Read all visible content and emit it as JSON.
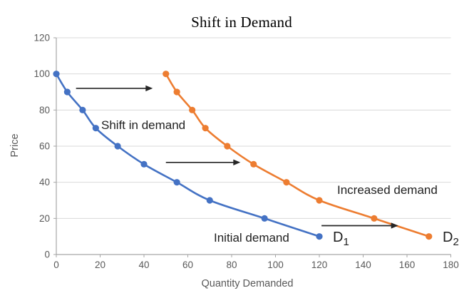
{
  "chart_data": {
    "type": "line",
    "title": "Shift in Demand",
    "xlabel": "Quantity Demanded",
    "ylabel": "Price",
    "xlim": [
      0,
      180
    ],
    "ylim": [
      0,
      120
    ],
    "x_ticks": [
      0,
      20,
      40,
      60,
      80,
      100,
      120,
      140,
      160,
      180
    ],
    "y_ticks": [
      0,
      20,
      40,
      60,
      80,
      100,
      120
    ],
    "grid": "horizontal",
    "legend": "none",
    "colors": {
      "initial_demand": "#4472C4",
      "increased_demand": "#ED7D31",
      "grid": "#d9d9d9",
      "axis": "#a6a6a6",
      "tick_text": "#595959",
      "annotation_text": "#1f1f1f",
      "arrow": "#262626"
    },
    "series": [
      {
        "name": "Initial demand",
        "curve_label": "D1",
        "color": "#4472C4",
        "points": [
          [
            0,
            100
          ],
          [
            5,
            90
          ],
          [
            12,
            80
          ],
          [
            18,
            70
          ],
          [
            28,
            60
          ],
          [
            40,
            50
          ],
          [
            55,
            40
          ],
          [
            70,
            30
          ],
          [
            95,
            20
          ],
          [
            120,
            10
          ]
        ]
      },
      {
        "name": "Increased demand",
        "curve_label": "D2",
        "color": "#ED7D31",
        "points": [
          [
            50,
            100
          ],
          [
            55,
            90
          ],
          [
            62,
            80
          ],
          [
            68,
            70
          ],
          [
            78,
            60
          ],
          [
            90,
            50
          ],
          [
            105,
            40
          ],
          [
            120,
            30
          ],
          [
            145,
            20
          ],
          [
            170,
            10
          ]
        ]
      }
    ],
    "annotations": {
      "shift_note": "Shift in demand",
      "increased": "Increased demand",
      "initial": "Initial demand",
      "d1_main": "D",
      "d1_sub": "1",
      "d2_main": "D",
      "d2_sub": "2"
    },
    "arrows": [
      {
        "name": "shift-arrow-top",
        "from": [
          9,
          92
        ],
        "to": [
          44,
          92
        ]
      },
      {
        "name": "shift-arrow-middle",
        "from": [
          50,
          51
        ],
        "to": [
          84,
          51
        ]
      },
      {
        "name": "shift-arrow-bottom",
        "from": [
          121,
          16
        ],
        "to": [
          156,
          16
        ]
      }
    ]
  }
}
